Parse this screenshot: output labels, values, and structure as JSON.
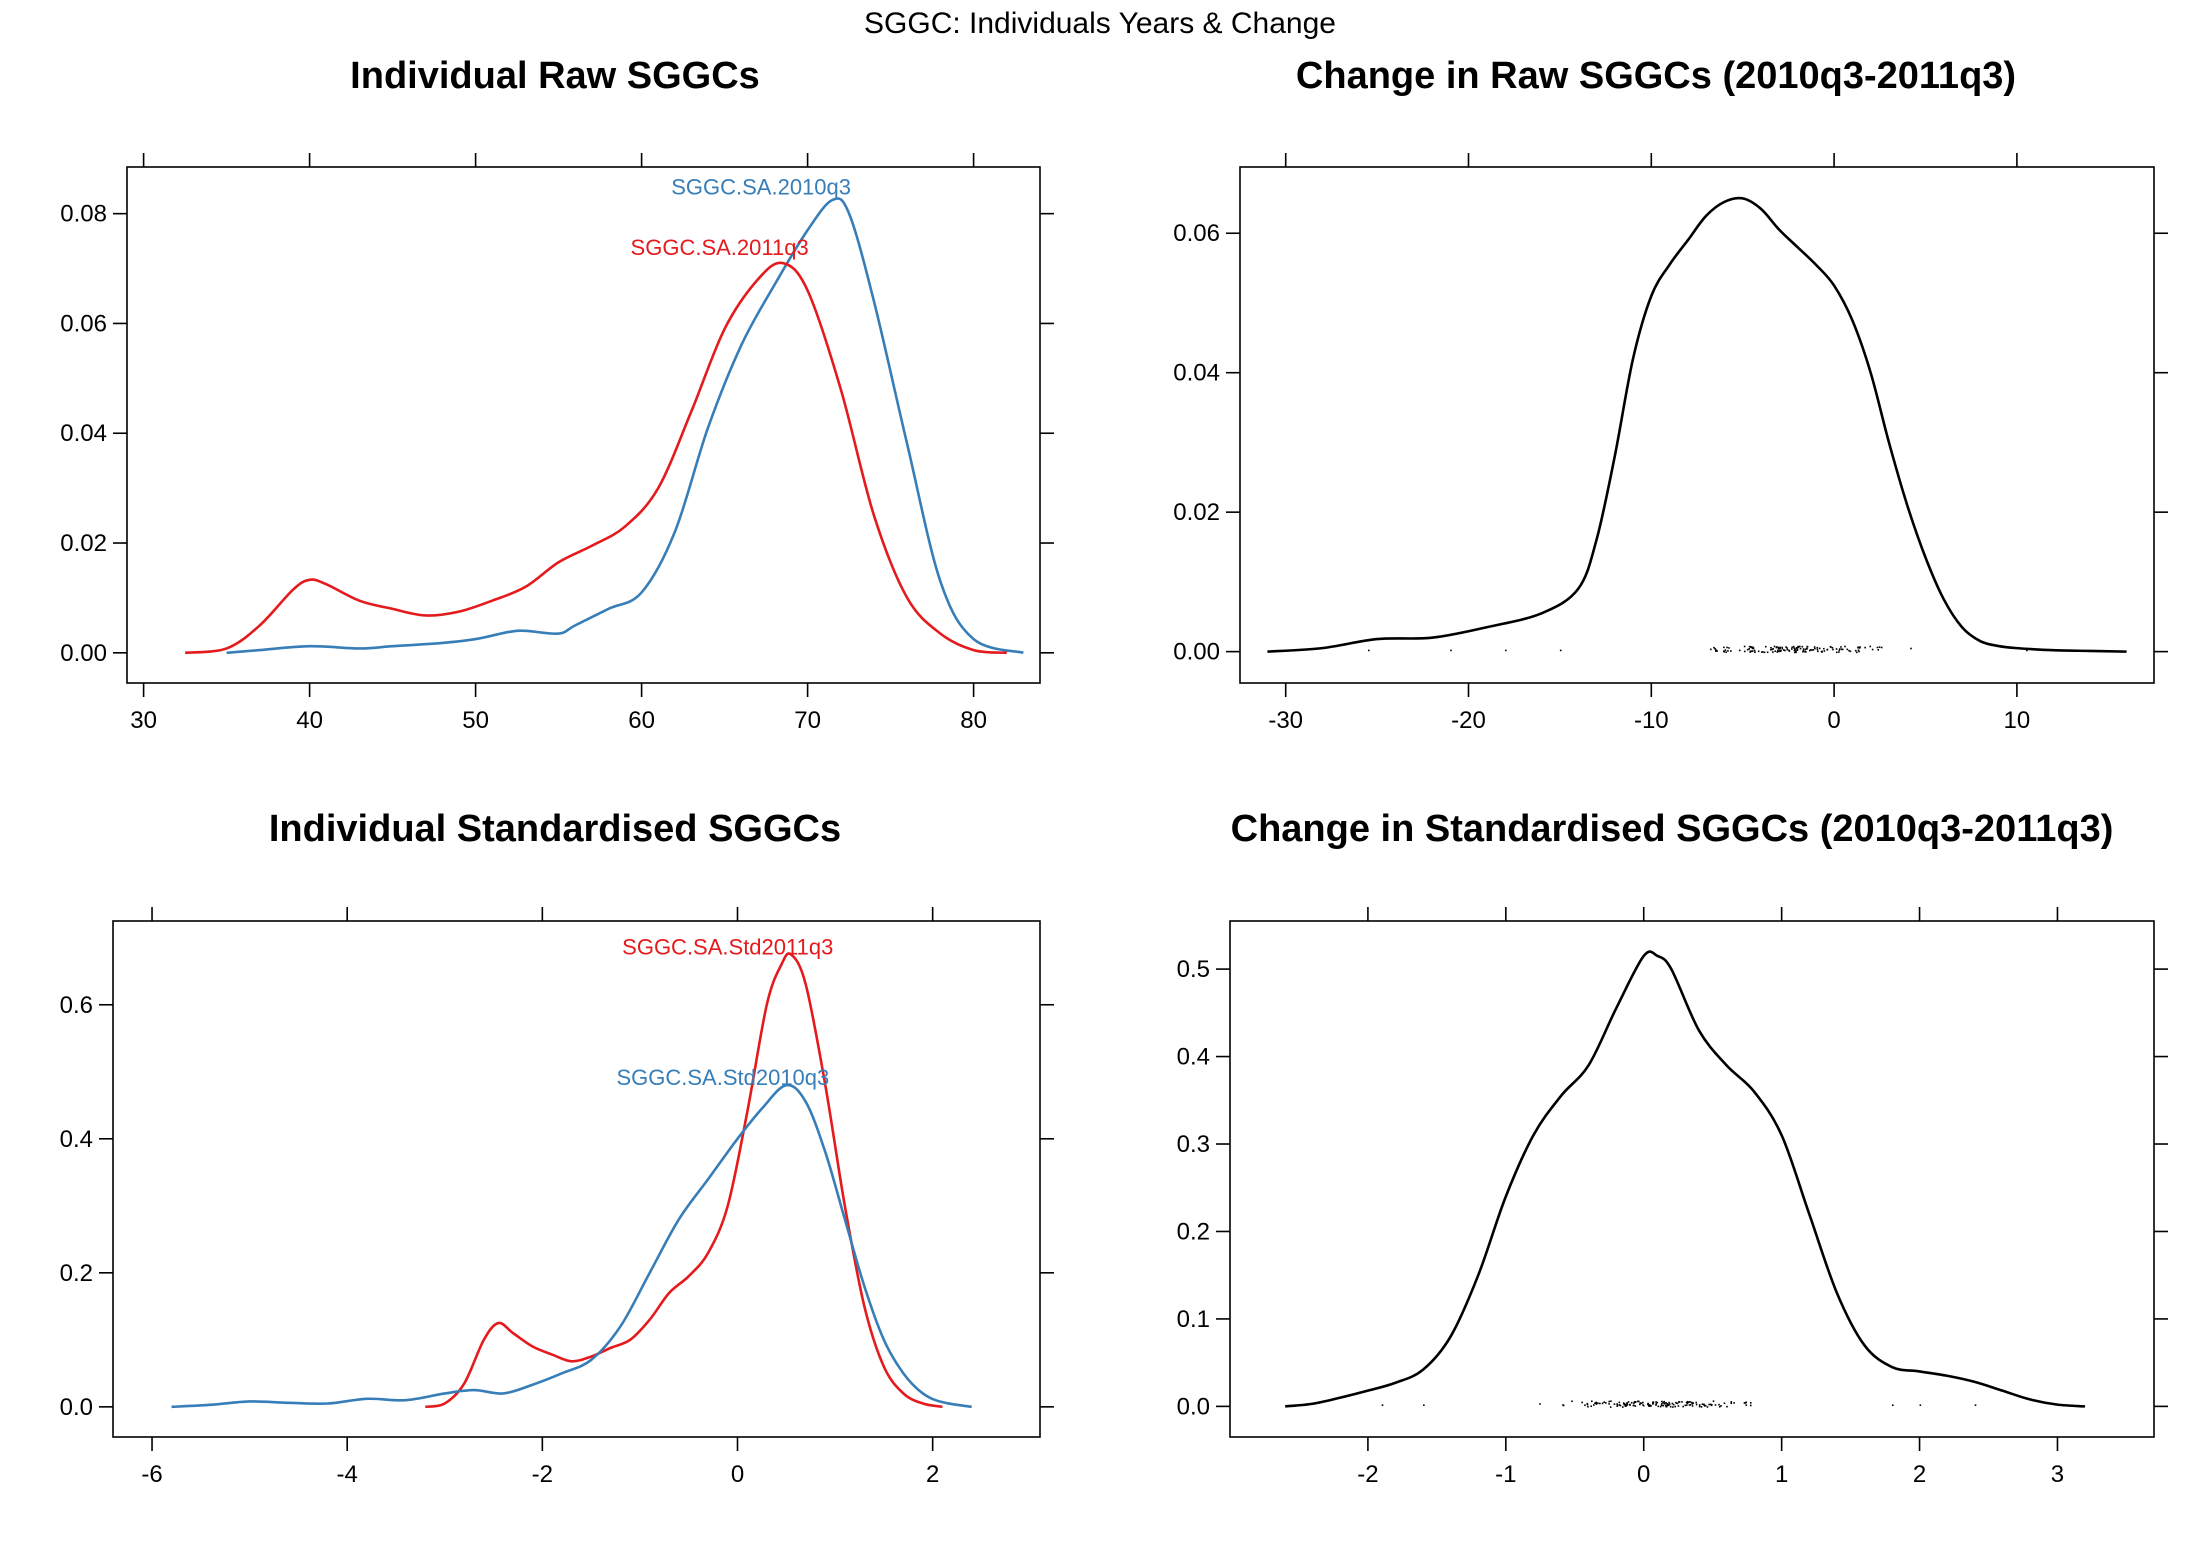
{
  "page_title": "SGGC: Individuals Years & Change",
  "colors": {
    "red": "#e41a1c",
    "blue": "#377eb8",
    "black": "#000000"
  },
  "chart_data": [
    {
      "id": "p1",
      "type": "line",
      "title": "Individual Raw SGGCs",
      "xlim": [
        29,
        84
      ],
      "ylim": [
        -0.0055,
        0.0885
      ],
      "x_ticks": [
        30,
        40,
        50,
        60,
        70,
        80
      ],
      "y_ticks": [
        0.0,
        0.02,
        0.04,
        0.06,
        0.08
      ],
      "x_tick_labels": [
        "30",
        "40",
        "50",
        "60",
        "70",
        "80"
      ],
      "y_tick_labels": [
        "0.00",
        "0.02",
        "0.04",
        "0.06",
        "0.08"
      ],
      "grid": false,
      "series": [
        {
          "name": "SGGC.SA.2010q3",
          "color": "blue",
          "label_at": [
            67.2,
            0.0835
          ],
          "x": [
            35,
            37,
            40,
            43,
            45,
            48,
            50,
            52,
            53,
            55,
            56,
            58,
            60,
            62,
            64,
            66,
            68,
            70,
            71.5,
            72.5,
            74,
            76,
            78,
            80,
            83
          ],
          "y": [
            0.0,
            0.0005,
            0.0012,
            0.0008,
            0.0012,
            0.0018,
            0.0025,
            0.0038,
            0.004,
            0.0035,
            0.005,
            0.008,
            0.011,
            0.022,
            0.041,
            0.056,
            0.067,
            0.077,
            0.0825,
            0.08,
            0.064,
            0.038,
            0.013,
            0.0025,
            0.0
          ]
        },
        {
          "name": "SGGC.SA.2011q3",
          "color": "red",
          "label_at": [
            64.7,
            0.0725
          ],
          "x": [
            32.5,
            35,
            37,
            39,
            40,
            41,
            43,
            45,
            47,
            49,
            51,
            53,
            55,
            57,
            59,
            61,
            63,
            65,
            67,
            68.5,
            70,
            72,
            74,
            76,
            78,
            80,
            82
          ],
          "y": [
            0.0,
            0.0008,
            0.005,
            0.0115,
            0.0133,
            0.0125,
            0.0095,
            0.008,
            0.0068,
            0.0075,
            0.0095,
            0.012,
            0.0165,
            0.0195,
            0.023,
            0.03,
            0.044,
            0.059,
            0.068,
            0.071,
            0.066,
            0.048,
            0.025,
            0.01,
            0.0035,
            0.0005,
            0.0
          ]
        }
      ]
    },
    {
      "id": "p2",
      "type": "line",
      "title": "Change in Raw SGGCs (2010q3-2011q3)",
      "xlim": [
        -32.5,
        17.5
      ],
      "ylim": [
        -0.0045,
        0.0695
      ],
      "x_ticks": [
        -30,
        -20,
        -10,
        0,
        10
      ],
      "y_ticks": [
        0.0,
        0.02,
        0.04,
        0.06
      ],
      "x_tick_labels": [
        "-30",
        "-20",
        "-10",
        "0",
        "10"
      ],
      "y_tick_labels": [
        "0.00",
        "0.02",
        "0.04",
        "0.06"
      ],
      "grid": false,
      "rug": {
        "center": -2,
        "spread": 5.5,
        "n": 150,
        "outliers": [
          -25.5,
          -21,
          -18,
          -15,
          10.5
        ]
      },
      "series": [
        {
          "name": "",
          "color": "black",
          "x": [
            -31,
            -28,
            -25,
            -22,
            -19,
            -16,
            -14,
            -13,
            -12,
            -11,
            -10,
            -9,
            -8,
            -7,
            -6,
            -5,
            -4,
            -3,
            -2,
            -1,
            0,
            1,
            2,
            3,
            4,
            5,
            6,
            7,
            8,
            9,
            10,
            12,
            14,
            16
          ],
          "y": [
            0.0,
            0.0005,
            0.0018,
            0.002,
            0.0035,
            0.0055,
            0.009,
            0.016,
            0.028,
            0.042,
            0.051,
            0.0555,
            0.059,
            0.0625,
            0.0645,
            0.065,
            0.0635,
            0.0605,
            0.058,
            0.0555,
            0.0525,
            0.0475,
            0.04,
            0.03,
            0.021,
            0.0135,
            0.0075,
            0.0035,
            0.0015,
            0.0008,
            0.0005,
            0.0002,
            0.0001,
            0.0
          ]
        }
      ]
    },
    {
      "id": "p3",
      "type": "line",
      "title": "Individual Standardised SGGCs",
      "xlim": [
        -6.4,
        3.1
      ],
      "ylim": [
        -0.045,
        0.725
      ],
      "x_ticks": [
        -6,
        -4,
        -2,
        0,
        2
      ],
      "y_ticks": [
        0.0,
        0.2,
        0.4,
        0.6
      ],
      "x_tick_labels": [
        "-6",
        "-4",
        "-2",
        "0",
        "2"
      ],
      "y_tick_labels": [
        "0.0",
        "0.2",
        "0.4",
        "0.6"
      ],
      "grid": false,
      "series": [
        {
          "name": "SGGC.SA.Std2011q3",
          "color": "red",
          "label_at": [
            -0.1,
            0.675
          ],
          "x": [
            -3.2,
            -3.0,
            -2.8,
            -2.6,
            -2.45,
            -2.3,
            -2.1,
            -1.9,
            -1.7,
            -1.5,
            -1.3,
            -1.1,
            -0.9,
            -0.7,
            -0.5,
            -0.3,
            -0.1,
            0.1,
            0.3,
            0.45,
            0.55,
            0.7,
            0.9,
            1.1,
            1.3,
            1.5,
            1.7,
            1.9,
            2.1
          ],
          "y": [
            0.0,
            0.005,
            0.035,
            0.1,
            0.125,
            0.11,
            0.09,
            0.078,
            0.068,
            0.075,
            0.088,
            0.1,
            0.13,
            0.17,
            0.195,
            0.23,
            0.3,
            0.44,
            0.6,
            0.66,
            0.675,
            0.63,
            0.48,
            0.3,
            0.15,
            0.06,
            0.02,
            0.005,
            0.0
          ]
        },
        {
          "name": "SGGC.SA.Std2010q3",
          "color": "blue",
          "label_at": [
            -0.15,
            0.48
          ],
          "x": [
            -5.8,
            -5.4,
            -5.0,
            -4.6,
            -4.2,
            -3.8,
            -3.4,
            -3.0,
            -2.7,
            -2.4,
            -2.1,
            -1.8,
            -1.5,
            -1.2,
            -0.9,
            -0.6,
            -0.3,
            0.0,
            0.25,
            0.5,
            0.7,
            0.9,
            1.1,
            1.3,
            1.5,
            1.7,
            1.9,
            2.1,
            2.4
          ],
          "y": [
            0.0,
            0.003,
            0.008,
            0.006,
            0.005,
            0.012,
            0.01,
            0.02,
            0.025,
            0.02,
            0.033,
            0.05,
            0.07,
            0.12,
            0.2,
            0.28,
            0.34,
            0.4,
            0.445,
            0.48,
            0.455,
            0.38,
            0.28,
            0.18,
            0.1,
            0.05,
            0.02,
            0.007,
            0.0
          ]
        }
      ]
    },
    {
      "id": "p4",
      "type": "line",
      "title": "Change in Standardised SGGCs (2010q3-2011q3)",
      "xlim": [
        -3.0,
        3.7
      ],
      "ylim": [
        -0.035,
        0.555
      ],
      "x_ticks": [
        -2,
        -1,
        0,
        1,
        2,
        3
      ],
      "y_ticks": [
        0.0,
        0.1,
        0.2,
        0.3,
        0.4,
        0.5
      ],
      "x_tick_labels": [
        "-2",
        "-1",
        "0",
        "1",
        "2",
        "3"
      ],
      "y_tick_labels": [
        "0.0",
        "0.1",
        "0.2",
        "0.3",
        "0.4",
        "0.5"
      ],
      "grid": false,
      "rug": {
        "center": 0.1,
        "spread": 0.75,
        "n": 160,
        "outliers": [
          -1.9,
          -1.6,
          1.8,
          2.0,
          2.4
        ]
      },
      "series": [
        {
          "name": "",
          "color": "black",
          "x": [
            -2.6,
            -2.4,
            -2.2,
            -2.0,
            -1.8,
            -1.6,
            -1.4,
            -1.2,
            -1.0,
            -0.8,
            -0.6,
            -0.4,
            -0.2,
            0.0,
            0.1,
            0.2,
            0.4,
            0.6,
            0.8,
            1.0,
            1.2,
            1.4,
            1.6,
            1.8,
            2.0,
            2.2,
            2.4,
            2.6,
            2.8,
            3.0,
            3.2
          ],
          "y": [
            0.0,
            0.003,
            0.01,
            0.018,
            0.027,
            0.042,
            0.08,
            0.15,
            0.24,
            0.31,
            0.355,
            0.39,
            0.455,
            0.515,
            0.515,
            0.5,
            0.43,
            0.39,
            0.36,
            0.31,
            0.22,
            0.13,
            0.07,
            0.045,
            0.04,
            0.035,
            0.028,
            0.018,
            0.008,
            0.002,
            0.0
          ]
        }
      ]
    }
  ]
}
